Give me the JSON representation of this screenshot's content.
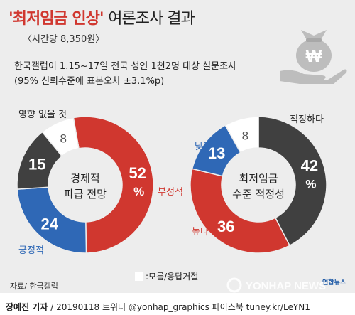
{
  "header": {
    "title_highlight": "'최저임금 인상'",
    "title_rest": "여론조사 결과",
    "subtitle": "〈시간당 8,350원〉",
    "desc_line1": "한국갤럽이 1.15~17일 전국 성인 1천2명 대상 설문조사",
    "desc_line2": "(95% 신뢰수준에 표본오차 ±3.1%p)"
  },
  "icon": {
    "name": "hand-money-bag-icon",
    "symbol": "₩"
  },
  "chart_data": [
    {
      "type": "pie",
      "title": "경제적 파급 전망",
      "title_lines": [
        "경제적",
        "파급 전망"
      ],
      "categories": [
        "부정적",
        "긍정적",
        "영향 없을 것",
        "모름/응답거절"
      ],
      "values": [
        52,
        24,
        15,
        8
      ],
      "value_labels": [
        "52%",
        "24",
        "15",
        "8"
      ],
      "colors": [
        "#d0372f",
        "#2f68b6",
        "#404040",
        "#ffffff"
      ]
    },
    {
      "type": "pie",
      "title": "최저임금 수준 적정성",
      "title_lines": [
        "최저임금",
        "수준 적정성"
      ],
      "categories": [
        "적정하다",
        "높다",
        "낮다",
        "모름/응답거절"
      ],
      "values": [
        42,
        36,
        13,
        8
      ],
      "value_labels": [
        "42%",
        "36",
        "13",
        "8"
      ],
      "colors": [
        "#404040",
        "#d0372f",
        "#2f68b6",
        "#ffffff"
      ]
    }
  ],
  "legend": {
    "label": ":모름/응답거절"
  },
  "source": "자료/ 한국갤럽",
  "logo": {
    "text_ko": "연합뉴스",
    "text_en": "YONHAP NEWS"
  },
  "footer": {
    "author": "장예진 기자",
    "credit": " / 20190118 트위터 @yonhap_graphics  페이스북 tuney.kr/LeYN1"
  }
}
